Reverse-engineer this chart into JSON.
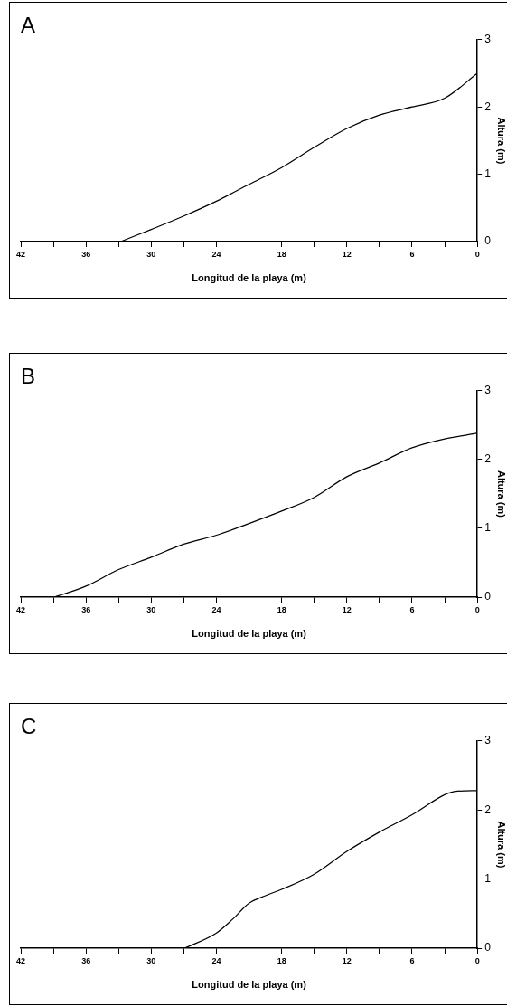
{
  "chart_data": [
    {
      "type": "line",
      "title": "A",
      "xlabel": "Longitud de la playa (m)",
      "ylabel": "Altura (m)",
      "x": [
        32.8,
        30,
        27,
        24,
        21,
        18,
        15,
        12,
        9,
        6,
        3,
        0
      ],
      "series": [
        {
          "color": "#000000",
          "values": [
            0,
            0.18,
            0.38,
            0.6,
            0.85,
            1.1,
            1.4,
            1.68,
            1.88,
            2.0,
            2.13,
            2.5
          ]
        }
      ],
      "xlim": [
        42,
        0
      ],
      "xticks": [
        42,
        {
          "value": 39,
          "label": null
        },
        36,
        {
          "value": 33,
          "label": null
        },
        30,
        {
          "value": 27,
          "label": null
        },
        24,
        {
          "value": 21,
          "label": null
        },
        18,
        {
          "value": 15,
          "label": null
        },
        12,
        {
          "value": 9,
          "label": null
        },
        6,
        {
          "value": 3,
          "label": null
        },
        0
      ],
      "ylim": [
        0,
        3
      ],
      "yticks": [
        0,
        1,
        2,
        3
      ],
      "grid": false,
      "legend": false,
      "marker": "none",
      "line_style": "solid"
    },
    {
      "type": "line",
      "title": "B",
      "xlabel": "Longitud de la playa (m)",
      "ylabel": "Altura (m)",
      "x": [
        38.9,
        36,
        33,
        30,
        27,
        24,
        21,
        18,
        15,
        12,
        9,
        6,
        3,
        0
      ],
      "series": [
        {
          "color": "#000000",
          "values": [
            0,
            0.16,
            0.4,
            0.58,
            0.77,
            0.9,
            1.07,
            1.25,
            1.45,
            1.75,
            1.95,
            2.17,
            2.3,
            2.38
          ]
        }
      ],
      "xlim": [
        42,
        0
      ],
      "xticks": [
        42,
        {
          "value": 39,
          "label": null
        },
        36,
        {
          "value": 33,
          "label": null
        },
        30,
        {
          "value": 27,
          "label": null
        },
        24,
        {
          "value": 21,
          "label": null
        },
        18,
        {
          "value": 15,
          "label": null
        },
        12,
        {
          "value": 9,
          "label": null
        },
        6,
        {
          "value": 3,
          "label": null
        },
        0
      ],
      "ylim": [
        0,
        3
      ],
      "yticks": [
        0,
        1,
        2,
        3
      ],
      "grid": false,
      "legend": false,
      "marker": "none",
      "line_style": "solid"
    },
    {
      "type": "line",
      "title": "C",
      "xlabel": "Longitud de la playa (m)",
      "ylabel": "Altura (m)",
      "x": [
        26.9,
        24,
        22.5,
        21,
        19.5,
        18,
        15,
        12,
        9,
        6,
        3,
        2,
        0
      ],
      "series": [
        {
          "color": "#000000",
          "values": [
            0,
            0.22,
            0.42,
            0.65,
            0.76,
            0.85,
            1.07,
            1.4,
            1.68,
            1.93,
            2.22,
            2.27,
            2.28
          ]
        }
      ],
      "xlim": [
        42,
        0
      ],
      "xticks": [
        42,
        {
          "value": 39,
          "label": null
        },
        36,
        {
          "value": 33,
          "label": null
        },
        30,
        {
          "value": 27,
          "label": null
        },
        24,
        {
          "value": 21,
          "label": null
        },
        18,
        {
          "value": 15,
          "label": null
        },
        12,
        {
          "value": 9,
          "label": null
        },
        6,
        {
          "value": 3,
          "label": null
        },
        0
      ],
      "ylim": [
        0,
        3
      ],
      "yticks": [
        0,
        1,
        2,
        3
      ],
      "grid": false,
      "legend": false,
      "marker": "none",
      "line_style": "solid"
    }
  ]
}
